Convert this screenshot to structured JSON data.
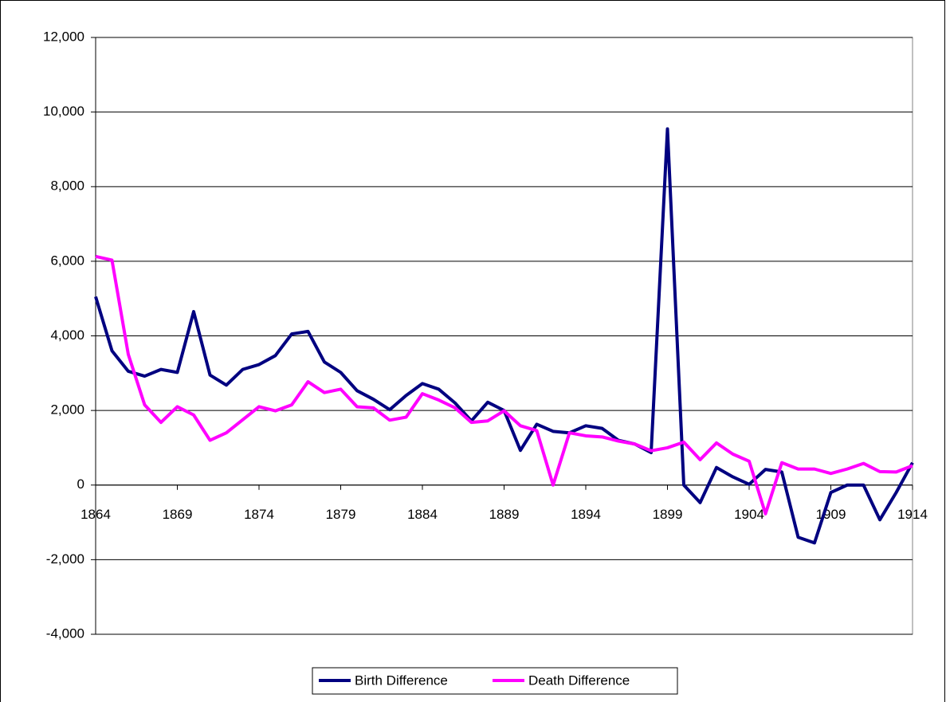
{
  "chart_data": {
    "type": "line",
    "x": [
      1864,
      1865,
      1866,
      1867,
      1868,
      1869,
      1870,
      1871,
      1872,
      1873,
      1874,
      1875,
      1876,
      1877,
      1878,
      1879,
      1880,
      1881,
      1882,
      1883,
      1884,
      1885,
      1886,
      1887,
      1888,
      1889,
      1890,
      1891,
      1892,
      1893,
      1894,
      1895,
      1896,
      1897,
      1898,
      1899,
      1900,
      1901,
      1902,
      1903,
      1904,
      1905,
      1906,
      1907,
      1908,
      1909,
      1910,
      1911,
      1912,
      1913,
      1914
    ],
    "series": [
      {
        "name": "Birth Difference",
        "color": "#000080",
        "values": [
          5050,
          3600,
          3050,
          2920,
          3100,
          3020,
          4650,
          2950,
          2680,
          3100,
          3230,
          3470,
          4050,
          4120,
          3300,
          3020,
          2530,
          2300,
          2020,
          2400,
          2720,
          2570,
          2200,
          1720,
          2220,
          2000,
          930,
          1630,
          1440,
          1400,
          1590,
          1520,
          1200,
          1100,
          870,
          9550,
          0,
          -470,
          470,
          220,
          20,
          420,
          350,
          -1400,
          -1550,
          -200,
          0,
          0,
          -930,
          -200,
          600
        ]
      },
      {
        "name": "Death Difference",
        "color": "#ff00ff",
        "values": [
          6130,
          6030,
          3500,
          2150,
          1680,
          2100,
          1880,
          1200,
          1400,
          1750,
          2100,
          1990,
          2150,
          2770,
          2480,
          2570,
          2100,
          2070,
          1740,
          1820,
          2450,
          2280,
          2070,
          1680,
          1720,
          1990,
          1590,
          1460,
          0,
          1400,
          1320,
          1290,
          1180,
          1100,
          920,
          1000,
          1150,
          680,
          1130,
          830,
          640,
          -770,
          600,
          430,
          430,
          310,
          430,
          580,
          360,
          350,
          520
        ]
      }
    ],
    "xlim": [
      1864,
      1914
    ],
    "xticks": [
      1864,
      1869,
      1874,
      1879,
      1884,
      1889,
      1894,
      1899,
      1904,
      1909,
      1914
    ],
    "ylim": [
      -4000,
      12000
    ],
    "yticks": [
      {
        "value": -4000,
        "label": "-4,000"
      },
      {
        "value": -2000,
        "label": "-2,000"
      },
      0,
      {
        "value": 2000,
        "label": "2,000"
      },
      {
        "value": 4000,
        "label": "4,000"
      },
      {
        "value": 6000,
        "label": "6,000"
      },
      {
        "value": 8000,
        "label": "8,000"
      },
      {
        "value": 10000,
        "label": "10,000"
      },
      {
        "value": 12000,
        "label": "12,000"
      }
    ],
    "grid": true,
    "legend": "bottom"
  }
}
